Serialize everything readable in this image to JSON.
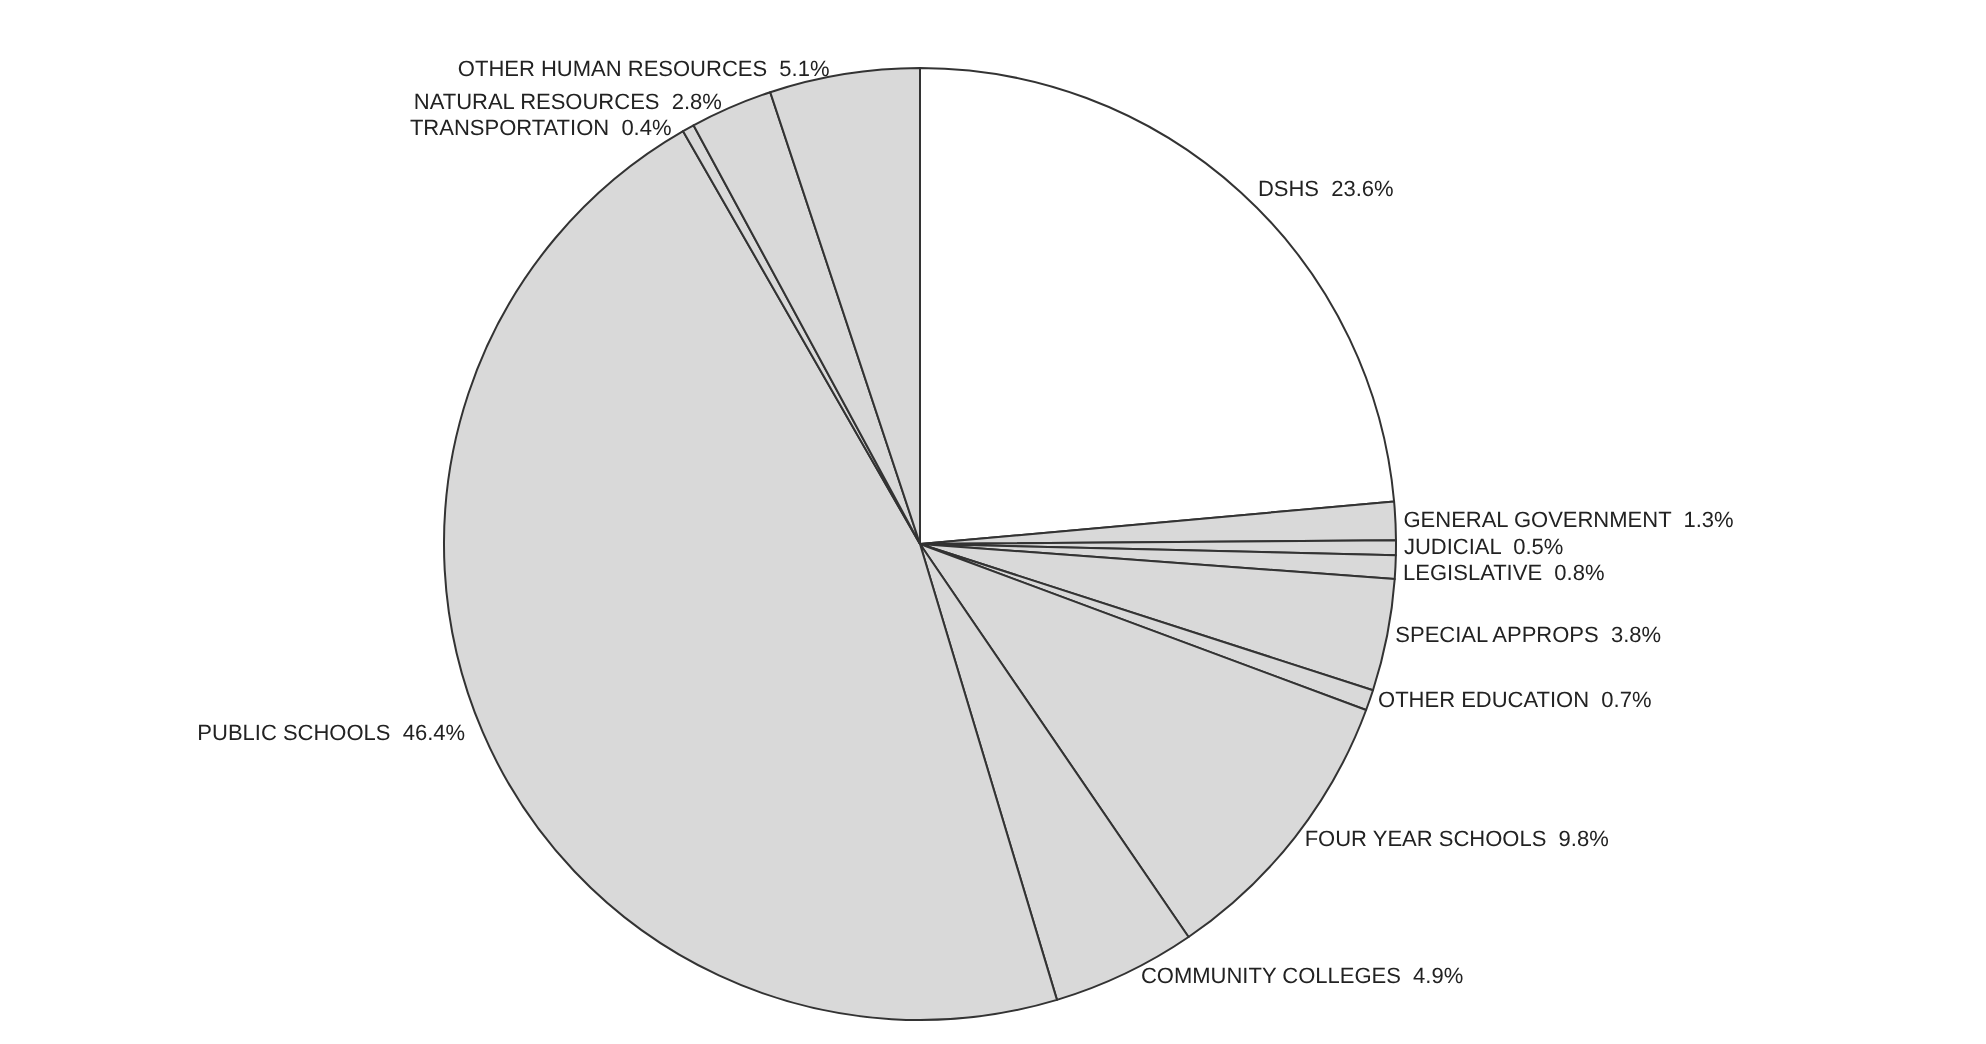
{
  "chart_data": {
    "type": "pie",
    "categories": [
      "DSHS",
      "GENERAL GOVERNMENT",
      "JUDICIAL",
      "LEGISLATIVE",
      "SPECIAL APPROPS",
      "OTHER EDUCATION",
      "FOUR YEAR SCHOOLS",
      "COMMUNITY COLLEGES",
      "PUBLIC SCHOOLS",
      "TRANSPORTATION",
      "NATURAL RESOURCES",
      "OTHER HUMAN RESOURCES"
    ],
    "values": [
      23.6,
      1.3,
      0.5,
      0.8,
      3.8,
      0.7,
      9.8,
      4.9,
      46.4,
      0.4,
      2.8,
      5.1
    ],
    "value_labels": [
      "23.6%",
      "1.3%",
      "0.5%",
      "0.8%",
      "3.8%",
      "0.7%",
      "9.8%",
      "4.9%",
      "46.4%",
      "0.4%",
      "2.8%",
      "5.1%"
    ],
    "colors": [
      "#ffffff",
      "#d9d9d9",
      "#d9d9d9",
      "#d9d9d9",
      "#d9d9d9",
      "#d9d9d9",
      "#d9d9d9",
      "#d9d9d9",
      "#d9d9d9",
      "#d9d9d9",
      "#d9d9d9",
      "#d9d9d9"
    ]
  }
}
